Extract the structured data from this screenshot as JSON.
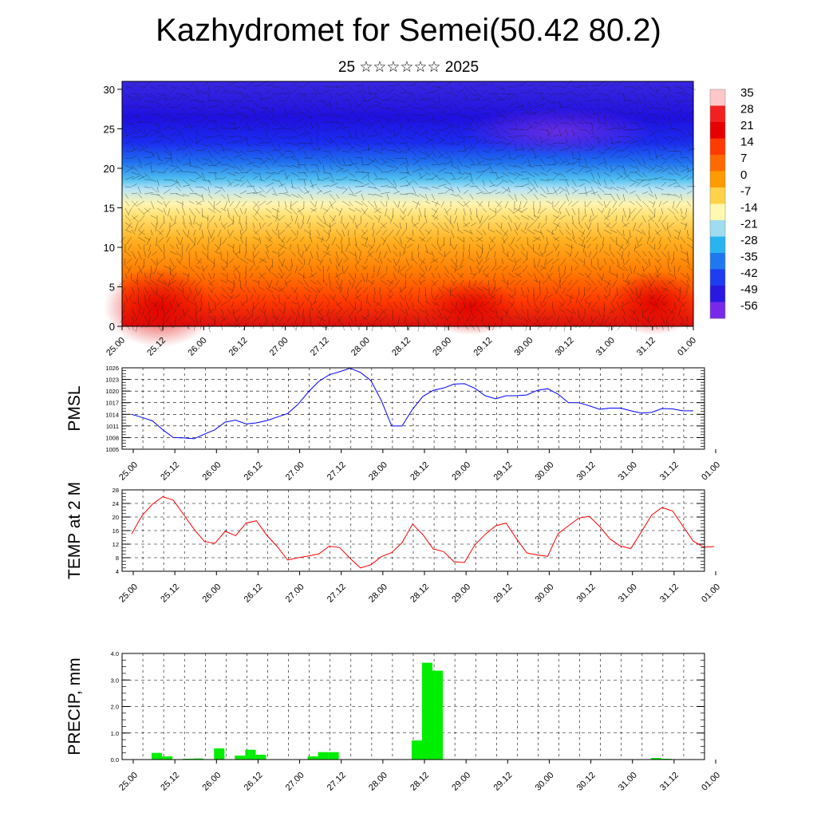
{
  "header": {
    "title": "Kazhydromet for Semei(50.42 80.2)",
    "subtitle": "25 ☆☆☆☆☆☆ 2025"
  },
  "time_axis": {
    "labels": [
      "25.00",
      "25.12",
      "26.00",
      "26.12",
      "27.00",
      "27.12",
      "28.00",
      "28.12",
      "29.00",
      "29.12",
      "30.00",
      "30.12",
      "31.00",
      "31.12",
      "01.00"
    ]
  },
  "colors": {
    "pmsl_line": "#0000ff",
    "temp_line": "#ff0000",
    "precip_bar": "#00ee00",
    "background": "#ffffff"
  },
  "chart_data": [
    {
      "type": "heatmap",
      "title": "",
      "ylim": [
        0,
        31
      ],
      "yticks": [
        0,
        5,
        10,
        15,
        20,
        25,
        30
      ],
      "xlabels": [
        "25.00",
        "25.12",
        "26.00",
        "26.12",
        "27.00",
        "27.12",
        "28.00",
        "28.12",
        "29.00",
        "29.12",
        "30.00",
        "30.12",
        "31.00",
        "31.12",
        "01.00"
      ],
      "colorbar": {
        "labels": [
          "35",
          "28",
          "21",
          "14",
          "7",
          "0",
          "-7",
          "-14",
          "-21",
          "-28",
          "-35",
          "-42",
          "-49",
          "-56"
        ],
        "colors": [
          "#ffc8c8",
          "#f22020",
          "#e60000",
          "#ff3a00",
          "#ff6a00",
          "#ff9a00",
          "#ffd24a",
          "#fff8b0",
          "#a0dcf0",
          "#28b4f0",
          "#1e78f0",
          "#1e3cf0",
          "#2818e0",
          "#7828e8"
        ]
      },
      "overlay": "wind vectors"
    },
    {
      "type": "line",
      "ylabel": "PMSL",
      "ylim": [
        1005,
        1026
      ],
      "yticks": [
        "1005",
        "1008",
        "1011",
        "1014",
        "1017",
        "1020",
        "1023",
        "1026"
      ],
      "x_step_hours": 3,
      "series": [
        {
          "values": [
            1014.0,
            1013.2,
            1012.3,
            1010.0,
            1008.0,
            1007.9,
            1007.7,
            1008.9,
            1010.0,
            1012.0,
            1012.5,
            1011.5,
            1011.8,
            1012.4,
            1013.3,
            1014.2,
            1016.6,
            1019.8,
            1022.5,
            1024.2,
            1025.0,
            1025.9,
            1024.8,
            1022.7,
            1017.6,
            1011.0,
            1011.0,
            1015.3,
            1018.6,
            1020.2,
            1020.8,
            1021.8,
            1021.9,
            1020.7,
            1018.8,
            1018.0,
            1018.8,
            1018.8,
            1019.0,
            1020.2,
            1020.6,
            1019.2,
            1017.0,
            1017.0,
            1016.2,
            1015.3,
            1015.6,
            1015.6,
            1014.9,
            1014.3,
            1014.5,
            1015.5,
            1015.4,
            1014.9,
            1014.9
          ]
        }
      ]
    },
    {
      "type": "line",
      "ylabel": "TEMP at 2 M",
      "ylim": [
        4,
        28
      ],
      "yticks": [
        "4",
        "8",
        "12",
        "16",
        "20",
        "24",
        "28"
      ],
      "x_step_hours": 3,
      "series": [
        {
          "values": [
            15.0,
            20.4,
            23.8,
            26.0,
            25.0,
            20.7,
            16.4,
            12.8,
            12.2,
            15.8,
            14.5,
            18.2,
            18.9,
            14.6,
            11.3,
            7.3,
            8.0,
            8.5,
            9.1,
            11.4,
            11.0,
            7.8,
            5.0,
            5.9,
            8.3,
            9.5,
            12.4,
            17.9,
            14.8,
            10.6,
            9.8,
            6.8,
            6.6,
            11.8,
            14.9,
            17.4,
            18.2,
            13.6,
            9.4,
            8.8,
            8.4,
            15.1,
            17.4,
            19.7,
            20.2,
            17.2,
            13.5,
            11.4,
            10.7,
            15.6,
            20.6,
            22.8,
            21.8,
            17.3,
            12.9,
            11.1,
            11.3
          ]
        }
      ]
    },
    {
      "type": "bar",
      "ylabel": "PRECIP, mm",
      "ylim": [
        0,
        4
      ],
      "yticks": [
        "0.0",
        "1.0",
        "2.0",
        "3.0",
        "4.0"
      ],
      "x_step_hours": 3,
      "values": [
        0,
        0.25,
        0.12,
        0,
        0.03,
        0.04,
        0,
        0.42,
        0,
        0.15,
        0.37,
        0.18,
        0,
        0,
        0,
        0,
        0.12,
        0.28,
        0.28,
        0,
        0,
        0,
        0,
        0,
        0,
        0,
        0.72,
        3.65,
        3.35,
        0,
        0,
        0,
        0,
        0,
        0,
        0,
        0,
        0,
        0,
        0,
        0,
        0,
        0,
        0,
        0,
        0,
        0,
        0,
        0,
        0.06,
        0.03,
        0,
        0,
        0,
        0,
        0,
        0
      ]
    }
  ]
}
